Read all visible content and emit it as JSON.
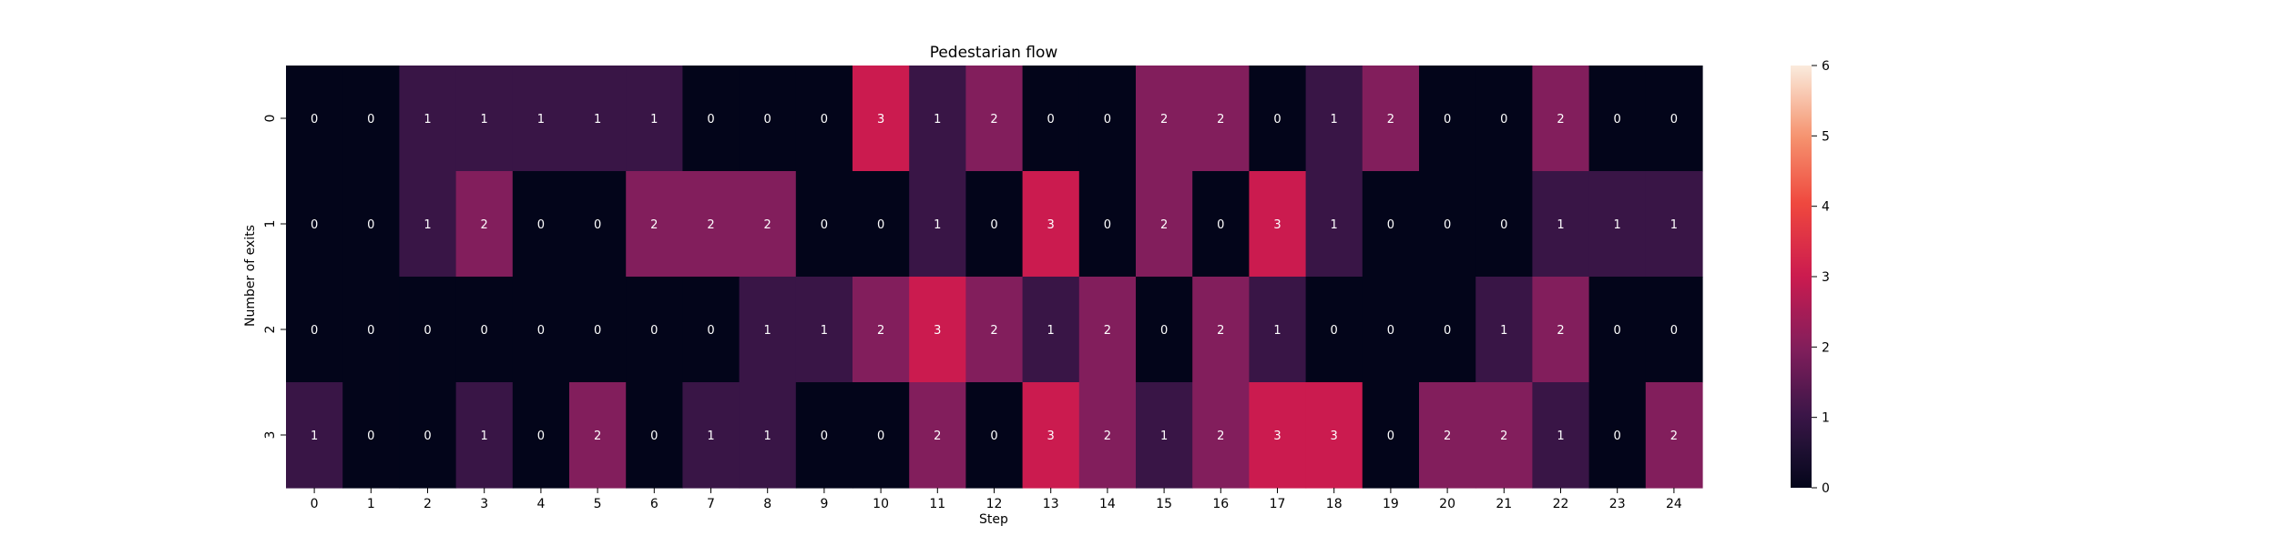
{
  "chart_data": {
    "type": "heatmap",
    "title": "Pedestarian flow",
    "xlabel": "Step",
    "ylabel": "Number of exits",
    "x": [
      "0",
      "1",
      "2",
      "3",
      "4",
      "5",
      "6",
      "7",
      "8",
      "9",
      "10",
      "11",
      "12",
      "13",
      "14",
      "15",
      "16",
      "17",
      "18",
      "19",
      "20",
      "21",
      "22",
      "23",
      "24"
    ],
    "y": [
      "0",
      "1",
      "2",
      "3"
    ],
    "values": [
      [
        0,
        0,
        1,
        1,
        1,
        1,
        1,
        0,
        0,
        0,
        3,
        1,
        2,
        0,
        0,
        2,
        2,
        0,
        1,
        2,
        0,
        0,
        2,
        0,
        0
      ],
      [
        0,
        0,
        1,
        2,
        0,
        0,
        2,
        2,
        2,
        0,
        0,
        1,
        0,
        3,
        0,
        2,
        0,
        3,
        1,
        0,
        0,
        0,
        1,
        1,
        1
      ],
      [
        0,
        0,
        0,
        0,
        0,
        0,
        0,
        0,
        1,
        1,
        2,
        3,
        2,
        1,
        2,
        0,
        2,
        1,
        0,
        0,
        0,
        1,
        2,
        0,
        0
      ],
      [
        1,
        0,
        0,
        1,
        0,
        2,
        0,
        1,
        1,
        0,
        0,
        2,
        0,
        3,
        2,
        1,
        2,
        3,
        3,
        0,
        2,
        2,
        1,
        0,
        2
      ]
    ],
    "colorbar": {
      "vmin": 0,
      "vmax": 6,
      "ticks": [
        "0",
        "1",
        "2",
        "3",
        "4",
        "5",
        "6"
      ],
      "colormap": "rocket"
    },
    "annotations": true,
    "grid": false
  }
}
